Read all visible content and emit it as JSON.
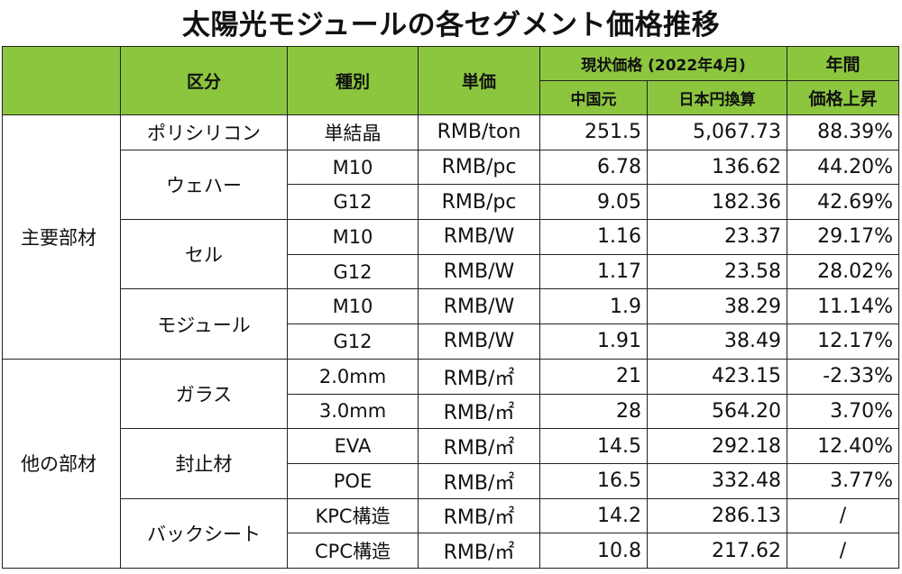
{
  "title": "太陽光モジュールの各セグメント価格推移",
  "headers": {
    "category": "区分",
    "type": "種別",
    "unit": "単価",
    "current_price": "現状価格 (2022年4月)",
    "cny": "中国元",
    "jpy": "日本円換算",
    "annual_1": "年間",
    "annual_2": "価格上昇"
  },
  "groups": [
    {
      "name": "主要部材"
    },
    {
      "name": "他の部材"
    }
  ],
  "items": [
    {
      "name": "ポリシリコン"
    },
    {
      "name": "ウェハー"
    },
    {
      "name": "セル"
    },
    {
      "name": "モジュール"
    },
    {
      "name": "ガラス"
    },
    {
      "name": "封止材"
    },
    {
      "name": "バックシート"
    }
  ],
  "rows": [
    {
      "type": "単結晶",
      "unit": "RMB/ton",
      "cny": "251.5",
      "jpy": "5,067.73",
      "rise": "88.39%"
    },
    {
      "type": "M10",
      "unit": "RMB/pc",
      "cny": "6.78",
      "jpy": "136.62",
      "rise": "44.20%"
    },
    {
      "type": "G12",
      "unit": "RMB/pc",
      "cny": "9.05",
      "jpy": "182.36",
      "rise": "42.69%"
    },
    {
      "type": "M10",
      "unit": "RMB/W",
      "cny": "1.16",
      "jpy": "23.37",
      "rise": "29.17%"
    },
    {
      "type": "G12",
      "unit": "RMB/W",
      "cny": "1.17",
      "jpy": "23.58",
      "rise": "28.02%"
    },
    {
      "type": "M10",
      "unit": "RMB/W",
      "cny": "1.9",
      "jpy": "38.29",
      "rise": "11.14%"
    },
    {
      "type": "G12",
      "unit": "RMB/W",
      "cny": "1.91",
      "jpy": "38.49",
      "rise": "12.17%"
    },
    {
      "type": "2.0mm",
      "unit": "RMB/㎡",
      "cny": "21",
      "jpy": "423.15",
      "rise": "-2.33%"
    },
    {
      "type": "3.0mm",
      "unit": "RMB/㎡",
      "cny": "28",
      "jpy": "564.20",
      "rise": "3.70%"
    },
    {
      "type": "EVA",
      "unit": "RMB/㎡",
      "cny": "14.5",
      "jpy": "292.18",
      "rise": "12.40%"
    },
    {
      "type": "POE",
      "unit": "RMB/㎡",
      "cny": "16.5",
      "jpy": "332.48",
      "rise": "3.77%"
    },
    {
      "type": "KPC構造",
      "unit": "RMB/㎡",
      "cny": "14.2",
      "jpy": "286.13",
      "rise": "/"
    },
    {
      "type": "CPC構造",
      "unit": "RMB/㎡",
      "cny": "10.8",
      "jpy": "217.62",
      "rise": "/"
    }
  ],
  "colors": {
    "header_bg": "#8cc63f",
    "border": "#222222"
  }
}
